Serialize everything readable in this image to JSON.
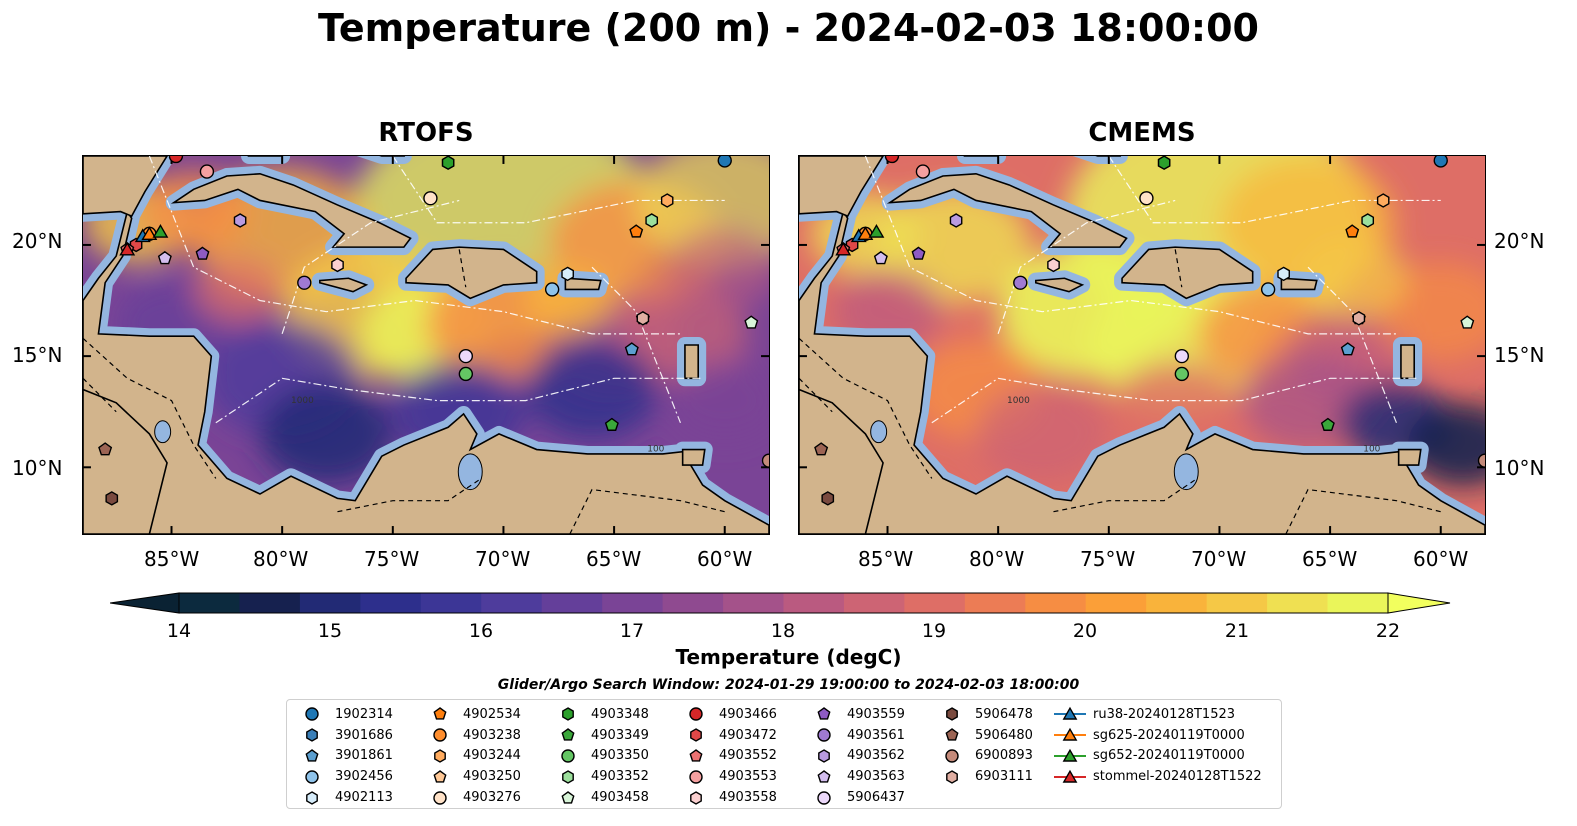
{
  "title": "Temperature (200 m) - 2024-02-03 18:00:00",
  "panels": [
    {
      "title": "RTOFS"
    },
    {
      "title": "CMEMS"
    }
  ],
  "axes": {
    "lon_ticks": [
      "85°W",
      "80°W",
      "75°W",
      "70°W",
      "65°W",
      "60°W"
    ],
    "lat_ticks": [
      "20°N",
      "15°N",
      "10°N"
    ]
  },
  "colorbar": {
    "label": "Temperature (degC)",
    "ticks": [
      "14",
      "15",
      "16",
      "17",
      "18",
      "19",
      "20",
      "21",
      "22"
    ],
    "colors": [
      "#0c2a3e",
      "#16214f",
      "#222a75",
      "#2d2f8c",
      "#3c3696",
      "#4e3c9c",
      "#643f9a",
      "#7a4496",
      "#8f4a90",
      "#a4528a",
      "#ba5a80",
      "#cd6474",
      "#de6e66",
      "#ec7c55",
      "#f68d43",
      "#fb9f38",
      "#f9b33b",
      "#f5c846",
      "#efe052",
      "#eaf55a"
    ]
  },
  "contour_labels": [
    "100",
    "1000"
  ],
  "search_window": "Glider/Argo Search Window: 2024-01-29 19:00:00 to 2024-02-03 18:00:00",
  "legend": {
    "columns": [
      [
        {
          "label": "1902314",
          "marker": "circle",
          "color": "#1f77b4"
        },
        {
          "label": "3901686",
          "marker": "hexagon",
          "color": "#3a7fb8"
        },
        {
          "label": "3901861",
          "marker": "pentagon",
          "color": "#5b9fd0"
        },
        {
          "label": "3902456",
          "marker": "circle",
          "color": "#8fc3ea"
        },
        {
          "label": "4902113",
          "marker": "hexagon",
          "color": "#d6ecfa"
        }
      ],
      [
        {
          "label": "4902534",
          "marker": "pentagon",
          "color": "#ff7f0e"
        },
        {
          "label": "4903238",
          "marker": "circle",
          "color": "#ff8e2e"
        },
        {
          "label": "4903244",
          "marker": "hexagon",
          "color": "#ffab5e"
        },
        {
          "label": "4903250",
          "marker": "pentagon",
          "color": "#ffc896"
        },
        {
          "label": "4903276",
          "marker": "circle",
          "color": "#ffe2c8"
        }
      ],
      [
        {
          "label": "4903348",
          "marker": "hexagon",
          "color": "#2ca02c"
        },
        {
          "label": "4903349",
          "marker": "pentagon",
          "color": "#3aa83a"
        },
        {
          "label": "4903350",
          "marker": "circle",
          "color": "#64c664"
        },
        {
          "label": "4903352",
          "marker": "hexagon",
          "color": "#9cdf9c"
        },
        {
          "label": "4903458",
          "marker": "pentagon",
          "color": "#d8f5d8"
        }
      ],
      [
        {
          "label": "4903466",
          "marker": "circle",
          "color": "#d62728"
        },
        {
          "label": "4903472",
          "marker": "hexagon",
          "color": "#e04848"
        },
        {
          "label": "4903552",
          "marker": "pentagon",
          "color": "#ec7272"
        },
        {
          "label": "4903553",
          "marker": "circle",
          "color": "#f5a0a0"
        },
        {
          "label": "4903558",
          "marker": "hexagon",
          "color": "#fbd0d0"
        }
      ],
      [
        {
          "label": "4903559",
          "marker": "pentagon",
          "color": "#8e5bc4"
        },
        {
          "label": "4903561",
          "marker": "circle",
          "color": "#a07ad2"
        },
        {
          "label": "4903562",
          "marker": "hexagon",
          "color": "#b99be0"
        },
        {
          "label": "4903563",
          "marker": "pentagon",
          "color": "#d3bdee"
        },
        {
          "label": "5906437",
          "marker": "circle",
          "color": "#ecd8fa"
        }
      ],
      [
        {
          "label": "5906478",
          "marker": "hexagon",
          "color": "#7a4a3f"
        },
        {
          "label": "5906480",
          "marker": "pentagon",
          "color": "#9c6454"
        },
        {
          "label": "6900893",
          "marker": "circle",
          "color": "#c48a7a"
        },
        {
          "label": "6903111",
          "marker": "hexagon",
          "color": "#e0aea2"
        }
      ],
      [
        {
          "label": "ru38-20240128T1523",
          "marker": "triangle",
          "color": "#1f77b4",
          "line": true
        },
        {
          "label": "sg625-20240119T0000",
          "marker": "triangle",
          "color": "#ff7f0e",
          "line": true
        },
        {
          "label": "sg652-20240119T0000",
          "marker": "triangle",
          "color": "#2ca02c",
          "line": true
        },
        {
          "label": "stommel-20240128T1522",
          "marker": "triangle",
          "color": "#d62728",
          "line": true
        }
      ]
    ]
  },
  "map_data": {
    "extent": {
      "lon": [
        -89,
        -58
      ],
      "lat": [
        7,
        24
      ]
    },
    "floats": [
      {
        "id": "1902314",
        "lon": -60.0,
        "lat": 23.8
      },
      {
        "id": "3901686",
        "lon": -72.5,
        "lat": 23.7
      },
      {
        "id": "3901861",
        "lon": -64.2,
        "lat": 15.3
      },
      {
        "id": "3902456",
        "lon": -67.8,
        "lat": 18.0
      },
      {
        "id": "4902113",
        "lon": -67.1,
        "lat": 18.7
      },
      {
        "id": "4902534",
        "lon": -64.0,
        "lat": 20.6
      },
      {
        "id": "4903238",
        "lon": -86.0,
        "lat": 20.5
      },
      {
        "id": "4903244",
        "lon": -62.6,
        "lat": 22.0
      },
      {
        "id": "4903250",
        "lon": -63.7,
        "lat": 16.7
      },
      {
        "id": "4903276",
        "lon": -73.3,
        "lat": 22.1
      },
      {
        "id": "4903348",
        "lon": -72.5,
        "lat": 23.7
      },
      {
        "id": "4903349",
        "lon": -65.1,
        "lat": 11.9
      },
      {
        "id": "4903350",
        "lon": -71.7,
        "lat": 14.2
      },
      {
        "id": "4903352",
        "lon": -63.3,
        "lat": 21.1
      },
      {
        "id": "4903458",
        "lon": -58.8,
        "lat": 16.5
      },
      {
        "id": "4903466",
        "lon": -84.8,
        "lat": 24.0
      },
      {
        "id": "4903472",
        "lon": -86.6,
        "lat": 20.0
      },
      {
        "id": "4903552",
        "lon": -87.0,
        "lat": 19.8
      },
      {
        "id": "4903553",
        "lon": -83.4,
        "lat": 23.3
      },
      {
        "id": "4903558",
        "lon": -77.5,
        "lat": 19.1
      },
      {
        "id": "4903559",
        "lon": -83.6,
        "lat": 19.6
      },
      {
        "id": "4903561",
        "lon": -79.0,
        "lat": 18.3
      },
      {
        "id": "4903562",
        "lon": -81.9,
        "lat": 21.1
      },
      {
        "id": "4903563",
        "lon": -85.3,
        "lat": 19.4
      },
      {
        "id": "5906437",
        "lon": -71.7,
        "lat": 15.0
      },
      {
        "id": "5906478",
        "lon": -87.7,
        "lat": 8.6
      },
      {
        "id": "5906480",
        "lon": -88.0,
        "lat": 10.8
      },
      {
        "id": "6900893",
        "lon": -58.0,
        "lat": 10.3
      },
      {
        "id": "6903111",
        "lon": -63.7,
        "lat": 16.7
      }
    ],
    "gliders": [
      {
        "id": "ru38-20240128T1523",
        "lon": -86.3,
        "lat": 20.4
      },
      {
        "id": "sg625-20240119T0000",
        "lon": -86.0,
        "lat": 20.5
      },
      {
        "id": "sg652-20240119T0000",
        "lon": -85.5,
        "lat": 20.6
      },
      {
        "id": "stommel-20240128T1522",
        "lon": -87.0,
        "lat": 19.8
      }
    ]
  }
}
